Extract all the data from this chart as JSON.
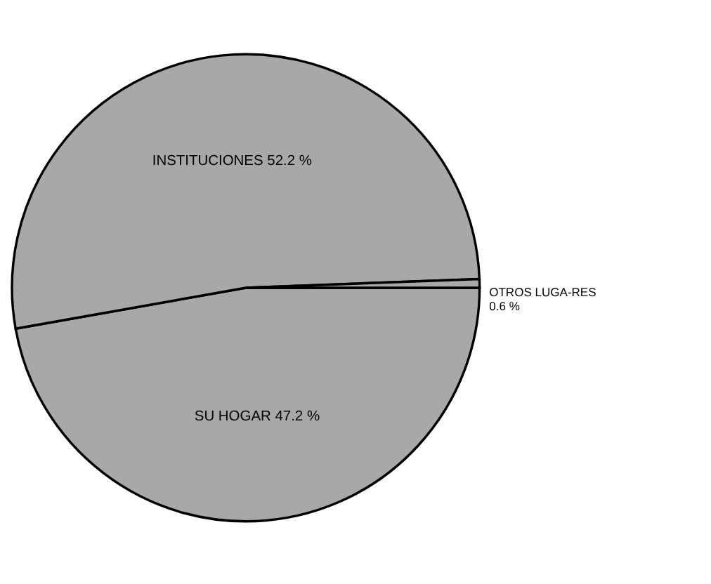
{
  "chart_data": {
    "type": "pie",
    "categories": [
      "SU HOGAR",
      "INSTITUCIONES",
      "OTROS LUGA-RES"
    ],
    "values": [
      47.2,
      52.2,
      0.6
    ],
    "value_labels": [
      "47.2 %",
      "52.2 %",
      "0.6 %"
    ],
    "colors": [
      "#a8a8a8",
      "#a8a8a8",
      "#a8a8a8"
    ]
  }
}
